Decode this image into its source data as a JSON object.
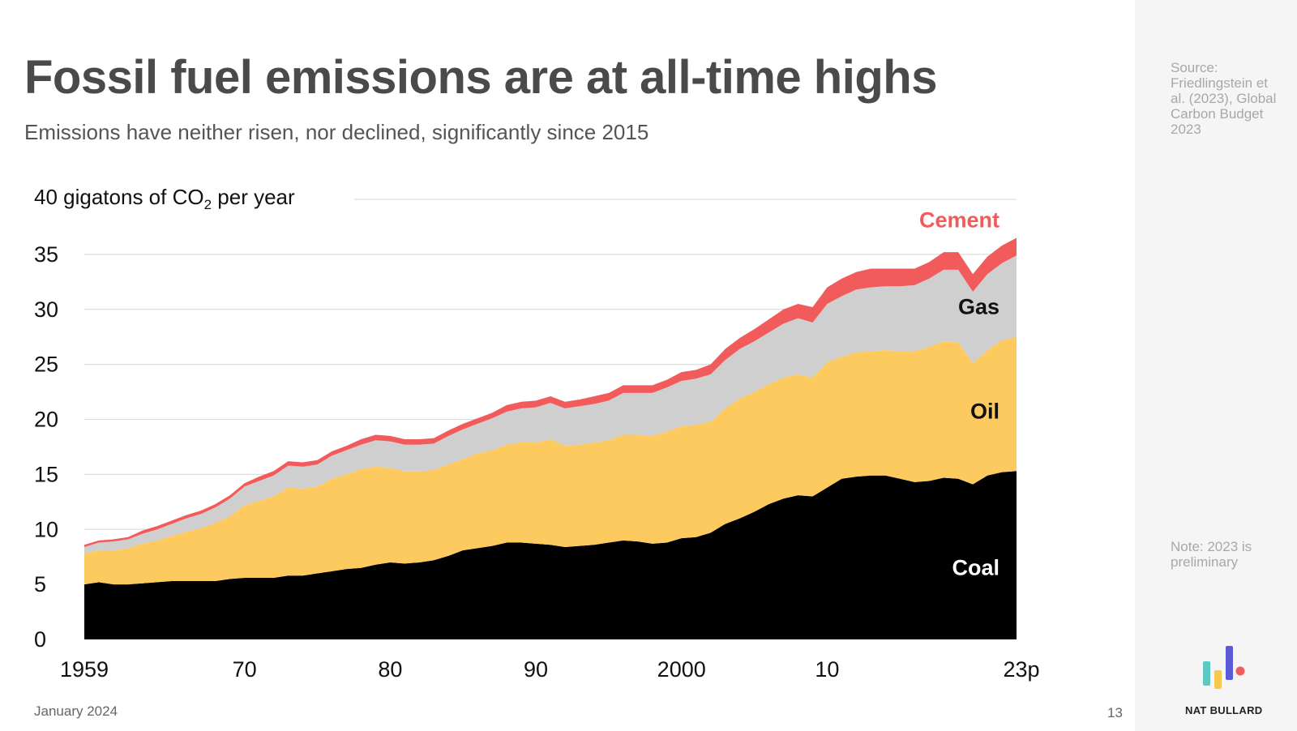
{
  "slide": {
    "title": "Fossil fuel emissions are at all-time highs",
    "subtitle": "Emissions have neither risen, nor declined, significantly since 2015",
    "date": "January 2024",
    "page_number": "13"
  },
  "side_panel": {
    "source": "Source: Friedlingstein et al. (2023), Global Carbon Budget 2023",
    "note": "Note: 2023 is preliminary",
    "brand": "NAT BULLARD"
  },
  "colors": {
    "coal": "#000000",
    "oil": "#fdca5f",
    "gas": "#cfcfcf",
    "cement": "#f25b5b",
    "grid": "#dddddd",
    "title": "#4a4a4a",
    "logo_bars": [
      "#5bc8c4",
      "#f6c94e",
      "#5b5bd6"
    ],
    "logo_dot": "#f25b5b"
  },
  "chart_data": {
    "type": "area",
    "stacked": true,
    "ylabel_prefix": "40 gigatons of CO",
    "ylabel_sub": "2",
    "ylabel_suffix": " per year",
    "ylim": [
      0,
      40
    ],
    "yticks": [
      0,
      5,
      10,
      15,
      20,
      25,
      30,
      35
    ],
    "xlim": [
      1959,
      2023
    ],
    "xticks": [
      {
        "x": 1959,
        "label": "1959"
      },
      {
        "x": 1970,
        "label": "70"
      },
      {
        "x": 1980,
        "label": "80"
      },
      {
        "x": 1990,
        "label": "90"
      },
      {
        "x": 2000,
        "label": "2000"
      },
      {
        "x": 2010,
        "label": "10"
      },
      {
        "x": 2023,
        "label": "23p"
      }
    ],
    "grid": "horizontal",
    "legend": "inline labels on right",
    "x": [
      1959,
      1960,
      1961,
      1962,
      1963,
      1964,
      1965,
      1966,
      1967,
      1968,
      1969,
      1970,
      1971,
      1972,
      1973,
      1974,
      1975,
      1976,
      1977,
      1978,
      1979,
      1980,
      1981,
      1982,
      1983,
      1984,
      1985,
      1986,
      1987,
      1988,
      1989,
      1990,
      1991,
      1992,
      1993,
      1994,
      1995,
      1996,
      1997,
      1998,
      1999,
      2000,
      2001,
      2002,
      2003,
      2004,
      2005,
      2006,
      2007,
      2008,
      2009,
      2010,
      2011,
      2012,
      2013,
      2014,
      2015,
      2016,
      2017,
      2018,
      2019,
      2020,
      2021,
      2022,
      2023
    ],
    "series": [
      {
        "name": "Coal",
        "values": [
          5.0,
          5.2,
          5.0,
          5.0,
          5.1,
          5.2,
          5.3,
          5.3,
          5.3,
          5.3,
          5.5,
          5.6,
          5.6,
          5.6,
          5.8,
          5.8,
          6.0,
          6.2,
          6.4,
          6.5,
          6.8,
          7.0,
          6.9,
          7.0,
          7.2,
          7.6,
          8.1,
          8.3,
          8.5,
          8.8,
          8.8,
          8.7,
          8.6,
          8.4,
          8.5,
          8.6,
          8.8,
          9.0,
          8.9,
          8.7,
          8.8,
          9.2,
          9.3,
          9.7,
          10.5,
          11.0,
          11.6,
          12.3,
          12.8,
          13.1,
          13.0,
          13.8,
          14.6,
          14.8,
          14.9,
          14.9,
          14.6,
          14.3,
          14.4,
          14.7,
          14.6,
          14.1,
          14.9,
          15.2,
          15.3
        ]
      },
      {
        "name": "Oil",
        "values": [
          2.8,
          2.9,
          3.1,
          3.3,
          3.6,
          3.8,
          4.1,
          4.5,
          4.8,
          5.3,
          5.7,
          6.6,
          7.0,
          7.4,
          8.0,
          7.9,
          7.9,
          8.4,
          8.6,
          9.0,
          8.9,
          8.6,
          8.4,
          8.3,
          8.2,
          8.3,
          8.3,
          8.6,
          8.7,
          8.9,
          9.1,
          9.2,
          9.6,
          9.2,
          9.2,
          9.3,
          9.3,
          9.6,
          9.7,
          9.8,
          10.1,
          10.2,
          10.2,
          10.1,
          10.5,
          10.9,
          10.9,
          10.9,
          11.0,
          11.0,
          10.8,
          11.4,
          11.1,
          11.3,
          11.3,
          11.4,
          11.6,
          11.9,
          12.2,
          12.4,
          12.4,
          11.0,
          11.4,
          12.0,
          12.2
        ]
      },
      {
        "name": "Gas",
        "values": [
          0.6,
          0.7,
          0.8,
          0.8,
          0.9,
          1.0,
          1.1,
          1.2,
          1.3,
          1.4,
          1.6,
          1.7,
          1.8,
          1.9,
          2.0,
          2.0,
          2.0,
          2.1,
          2.2,
          2.2,
          2.4,
          2.4,
          2.4,
          2.4,
          2.4,
          2.6,
          2.7,
          2.7,
          2.9,
          3.0,
          3.1,
          3.2,
          3.3,
          3.4,
          3.5,
          3.5,
          3.6,
          3.8,
          3.8,
          3.9,
          4.0,
          4.1,
          4.2,
          4.3,
          4.4,
          4.5,
          4.6,
          4.7,
          4.9,
          5.1,
          5.0,
          5.3,
          5.5,
          5.7,
          5.8,
          5.8,
          5.9,
          6.0,
          6.2,
          6.5,
          6.6,
          6.5,
          6.9,
          7.0,
          7.4
        ]
      },
      {
        "name": "Cement",
        "values": [
          0.2,
          0.2,
          0.2,
          0.2,
          0.3,
          0.3,
          0.3,
          0.3,
          0.3,
          0.3,
          0.3,
          0.3,
          0.4,
          0.4,
          0.4,
          0.4,
          0.4,
          0.4,
          0.4,
          0.5,
          0.5,
          0.5,
          0.5,
          0.5,
          0.5,
          0.5,
          0.5,
          0.5,
          0.5,
          0.6,
          0.6,
          0.6,
          0.6,
          0.6,
          0.6,
          0.7,
          0.7,
          0.7,
          0.7,
          0.7,
          0.7,
          0.8,
          0.8,
          0.9,
          1.0,
          1.0,
          1.1,
          1.2,
          1.3,
          1.3,
          1.4,
          1.5,
          1.6,
          1.6,
          1.7,
          1.6,
          1.6,
          1.5,
          1.5,
          1.6,
          1.6,
          1.6,
          1.6,
          1.6,
          1.6
        ]
      }
    ],
    "annotations": [
      {
        "series": "Cement",
        "label": "Cement",
        "y": 38.2
      },
      {
        "series": "Gas",
        "label": "Gas",
        "y": 30.3
      },
      {
        "series": "Oil",
        "label": "Oil",
        "y": 20.8
      },
      {
        "series": "Coal",
        "label": "Coal",
        "y": 6.6
      }
    ]
  }
}
